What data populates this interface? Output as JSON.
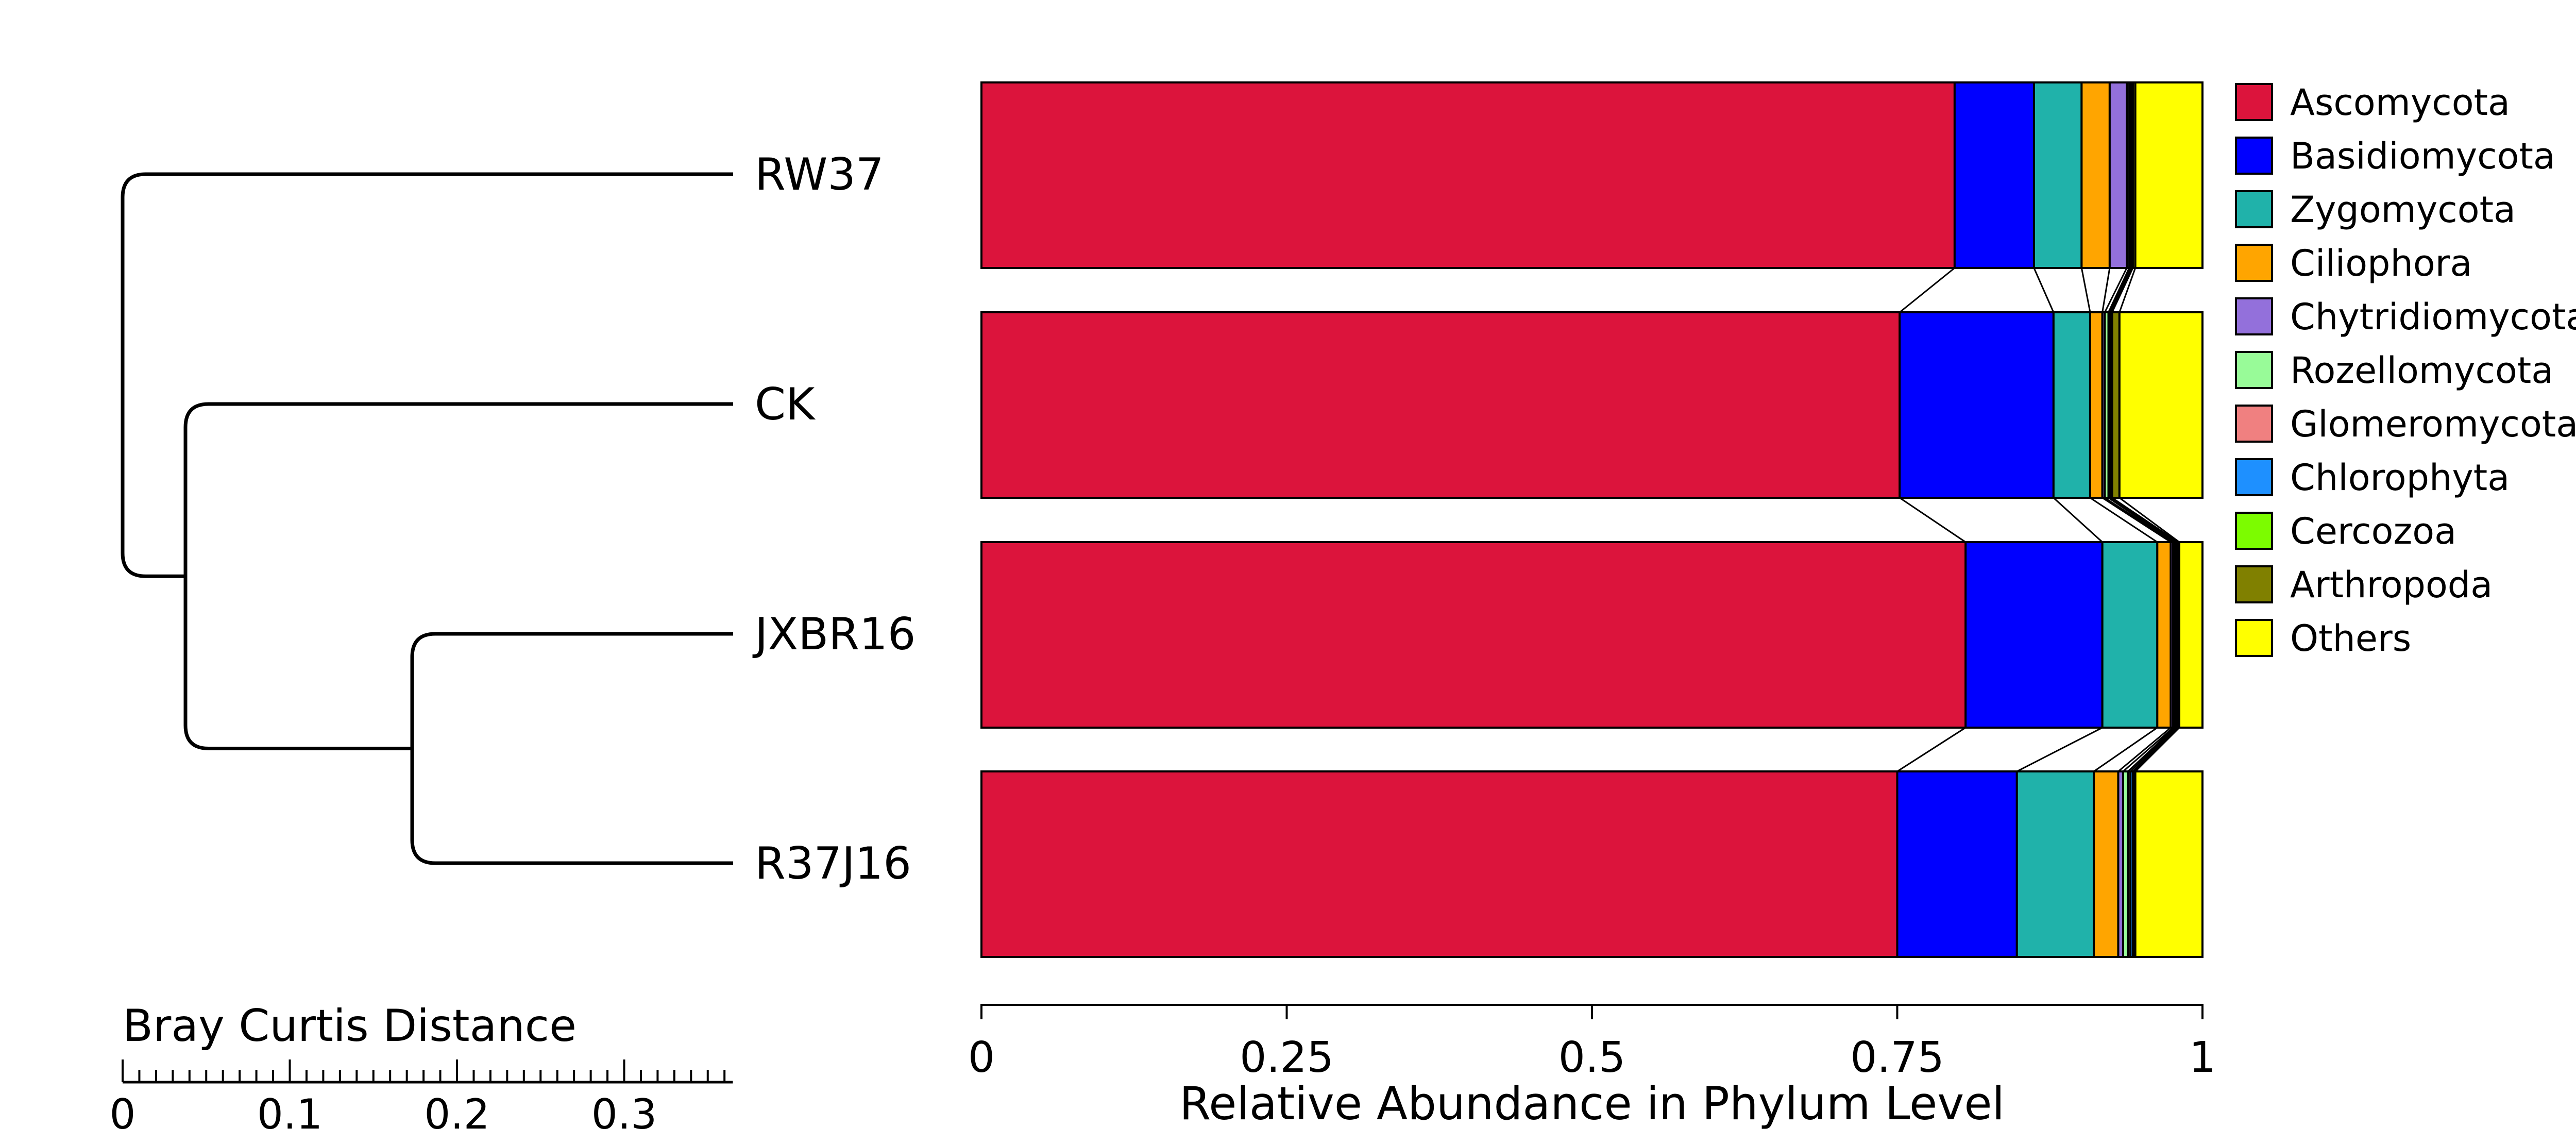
{
  "chart_data": {
    "type": "bar",
    "orientation": "horizontal",
    "stacked": true,
    "title": "",
    "xlabel": "Relative Abundance in Phylum Level",
    "ylabel": "",
    "xlim": [
      0,
      1
    ],
    "xticks": [
      0,
      0.25,
      0.5,
      0.75,
      1
    ],
    "xtick_labels": [
      "0",
      "0.25",
      "0.5",
      "0.75",
      "1"
    ],
    "grid": false,
    "legend": "right",
    "connector_lines": true,
    "categories": [
      "RW37",
      "CK",
      "JXBR16",
      "R37J16"
    ],
    "series": [
      {
        "name": "Ascomycota",
        "color": "#DC143C",
        "values": [
          0.797,
          0.752,
          0.806,
          0.75
        ]
      },
      {
        "name": "Basidiomycota",
        "color": "#0000FF",
        "values": [
          0.065,
          0.126,
          0.112,
          0.098
        ]
      },
      {
        "name": "Zygomycota",
        "color": "#20B2AA",
        "values": [
          0.039,
          0.03,
          0.045,
          0.063
        ]
      },
      {
        "name": "Ciliophora",
        "color": "#FFA500",
        "values": [
          0.023,
          0.01,
          0.011,
          0.02
        ]
      },
      {
        "name": "Chytridiomycota",
        "color": "#9370DB",
        "values": [
          0.014,
          0.002,
          0.002,
          0.004
        ]
      },
      {
        "name": "Rozellomycota",
        "color": "#98FB98",
        "values": [
          0.002,
          0.003,
          0.001,
          0.004
        ]
      },
      {
        "name": "Glomeromycota",
        "color": "#F08080",
        "values": [
          0.001,
          0.001,
          0.001,
          0.002
        ]
      },
      {
        "name": "Chlorophyta",
        "color": "#1E90FF",
        "values": [
          0.001,
          0.001,
          0.001,
          0.002
        ]
      },
      {
        "name": "Cercozoa",
        "color": "#7CFC00",
        "values": [
          0.001,
          0.001,
          0.001,
          0.001
        ]
      },
      {
        "name": "Arthropoda",
        "color": "#808000",
        "values": [
          0.002,
          0.006,
          0.001,
          0.001
        ]
      },
      {
        "name": "Others",
        "color": "#FFFF00",
        "values": [
          0.055,
          0.068,
          0.019,
          0.055
        ]
      }
    ]
  },
  "dendrogram": {
    "title": "Bray Curtis Distance",
    "leaves": [
      "RW37",
      "CK",
      "JXBR16",
      "R37J16"
    ],
    "merges": [
      {
        "children": [
          "JXBR16",
          "R37J16"
        ],
        "height": 0.175
      },
      {
        "children": [
          "CK",
          "JXBR16+R37J16"
        ],
        "height": 0.037
      },
      {
        "children": [
          "RW37",
          "CK+JXBR16+R37J16"
        ],
        "height": 0.0
      }
    ],
    "axis_max": 0.365,
    "ticks": [
      0,
      0.1,
      0.2,
      0.3
    ],
    "tick_labels": [
      "0",
      "0.1",
      "0.2",
      "0.3"
    ]
  }
}
